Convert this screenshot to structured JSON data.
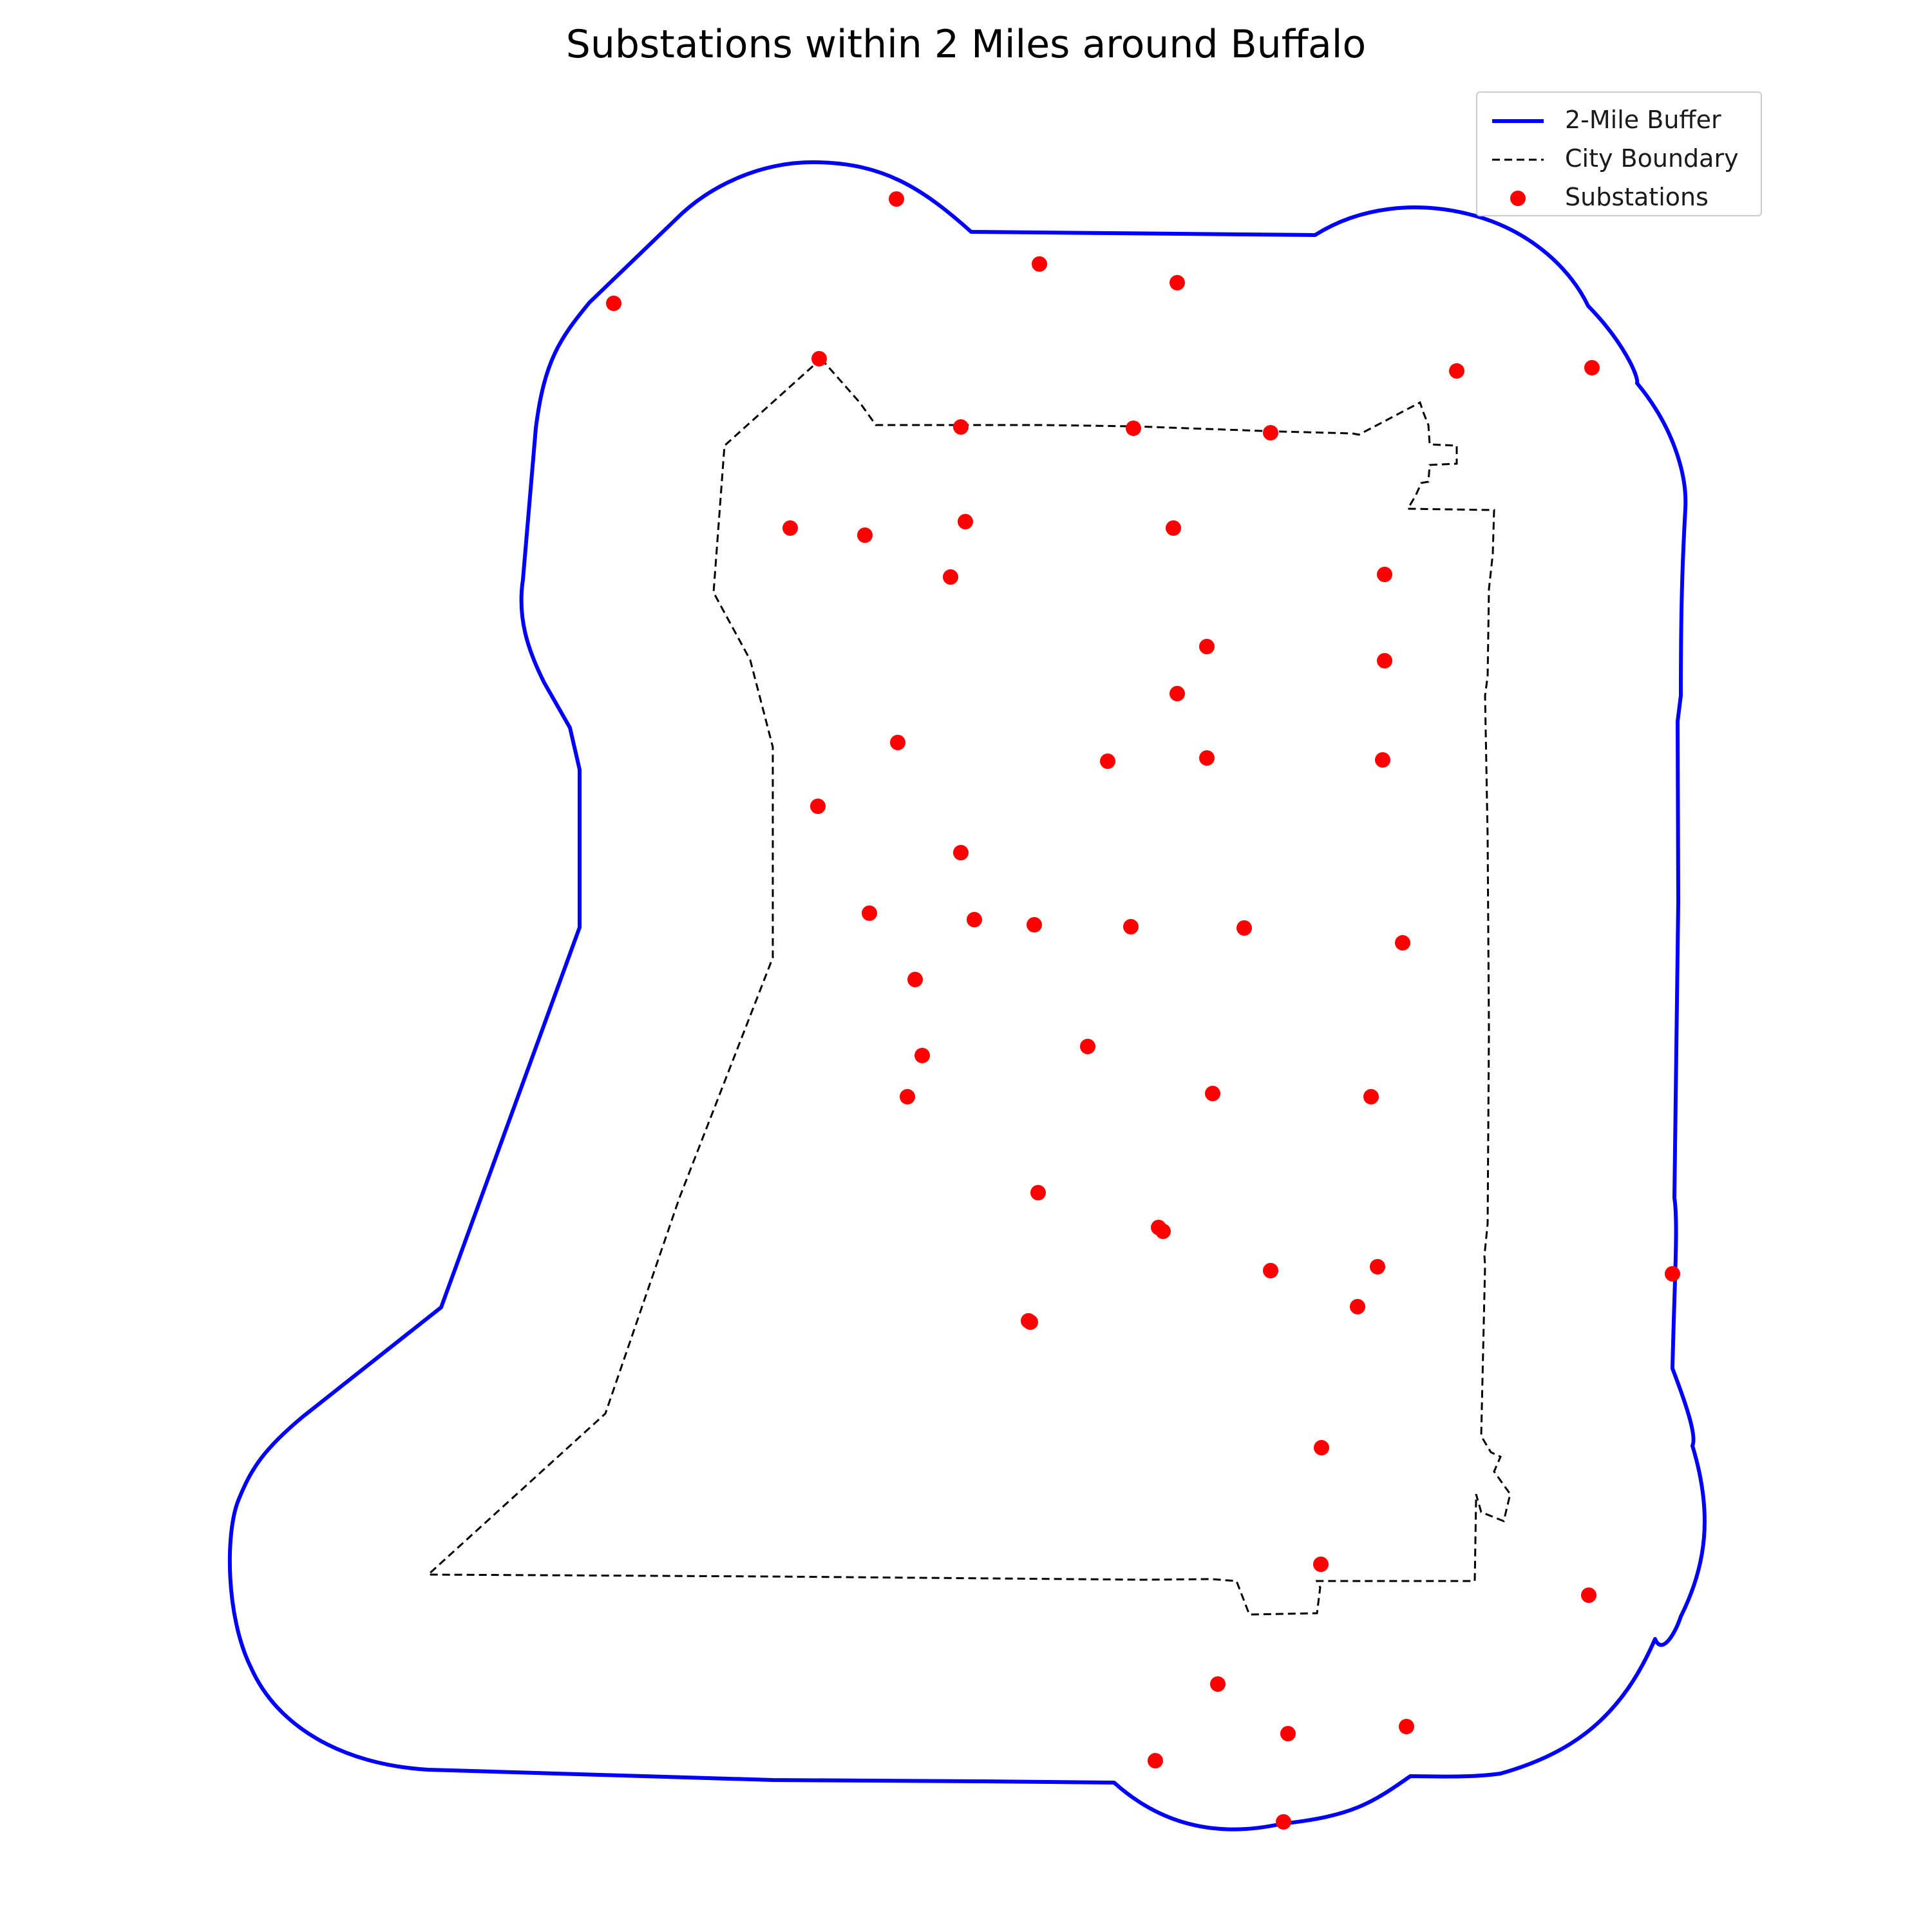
{
  "title": "Substations within 2 Miles around Buffalo",
  "legend": {
    "buffer_label": "2-Mile Buffer",
    "boundary_label": "City Boundary",
    "substations_label": "Substations"
  },
  "colors": {
    "buffer": "#0000ff",
    "boundary": "#000000",
    "substation": "#ff0000"
  },
  "map_layers": {
    "buffer_style": "solid",
    "boundary_style": "dashed",
    "substation_count": 55
  }
}
